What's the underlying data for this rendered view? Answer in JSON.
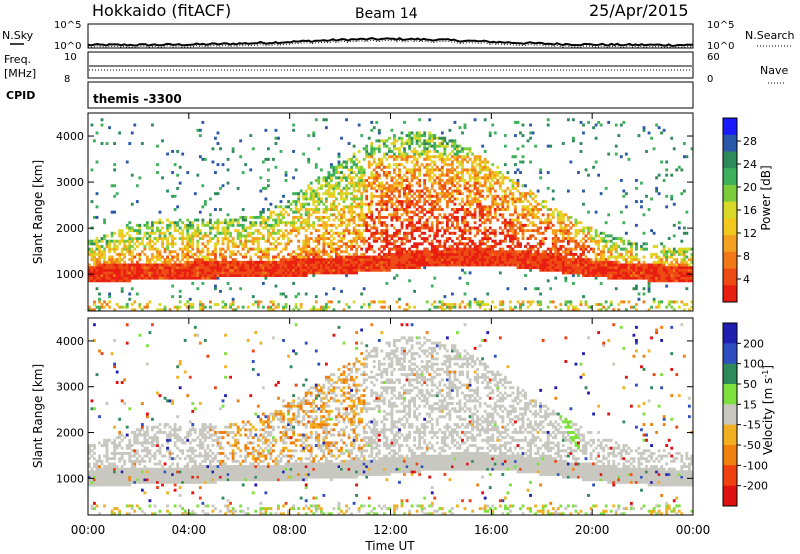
{
  "header": {
    "station": "Hokkaido (fitACF)",
    "beam": "Beam 14",
    "date": "25/Apr/2015"
  },
  "top_panels": {
    "nsky_label": "N.Sky",
    "nsky_ticks": [
      "10^5",
      "10^0"
    ],
    "nsearch_label": "N.Search",
    "nsearch_ticks": [
      "10^5",
      "10^0"
    ],
    "freq_label": "Freq.",
    "freq_unit": "[MHz]",
    "freq_ticks": [
      "10",
      "8"
    ],
    "nave_label": "Nave",
    "nave_ticks": [
      "60",
      "0"
    ],
    "cpid_label": "CPID",
    "cpid_value": "themis -3300"
  },
  "x_axis": {
    "label": "Time UT",
    "ticks": [
      "00:00",
      "04:00",
      "08:00",
      "12:00",
      "16:00",
      "20:00",
      "00:00"
    ]
  },
  "chart_data": [
    {
      "type": "heatmap",
      "ylabel": "Slant Range [km]",
      "yticks": [
        "1000",
        "2000",
        "3000",
        "4000"
      ],
      "ylim": [
        200,
        4500
      ],
      "xlim_hours": [
        0,
        24
      ],
      "colorbar": {
        "label": "Power [dB]",
        "ticks": [
          "4",
          "8",
          "12",
          "16",
          "20",
          "24",
          "28"
        ],
        "colors": [
          "#1a1aff",
          "#2a58a8",
          "#2f8a5a",
          "#3cb05a",
          "#7ccd3c",
          "#d9d92a",
          "#f2c71e",
          "#f4a020",
          "#f07818",
          "#ee4a14",
          "#e81e10"
        ]
      }
    },
    {
      "type": "heatmap",
      "ylabel": "Slant Range [km]",
      "yticks": [
        "1000",
        "2000",
        "3000",
        "4000"
      ],
      "ylim": [
        200,
        4500
      ],
      "xlim_hours": [
        0,
        24
      ],
      "colorbar": {
        "label": "Velocity [m s^-1]",
        "ticks": [
          "200",
          "100",
          "50",
          "15",
          "-15",
          "-50",
          "-100",
          "-200"
        ],
        "colors": [
          "#2020b0",
          "#2f4fc0",
          "#2e8a5a",
          "#7ee03c",
          "#c8c8c0",
          "#f0b020",
          "#f08010",
          "#f04010",
          "#e01010"
        ]
      }
    }
  ]
}
